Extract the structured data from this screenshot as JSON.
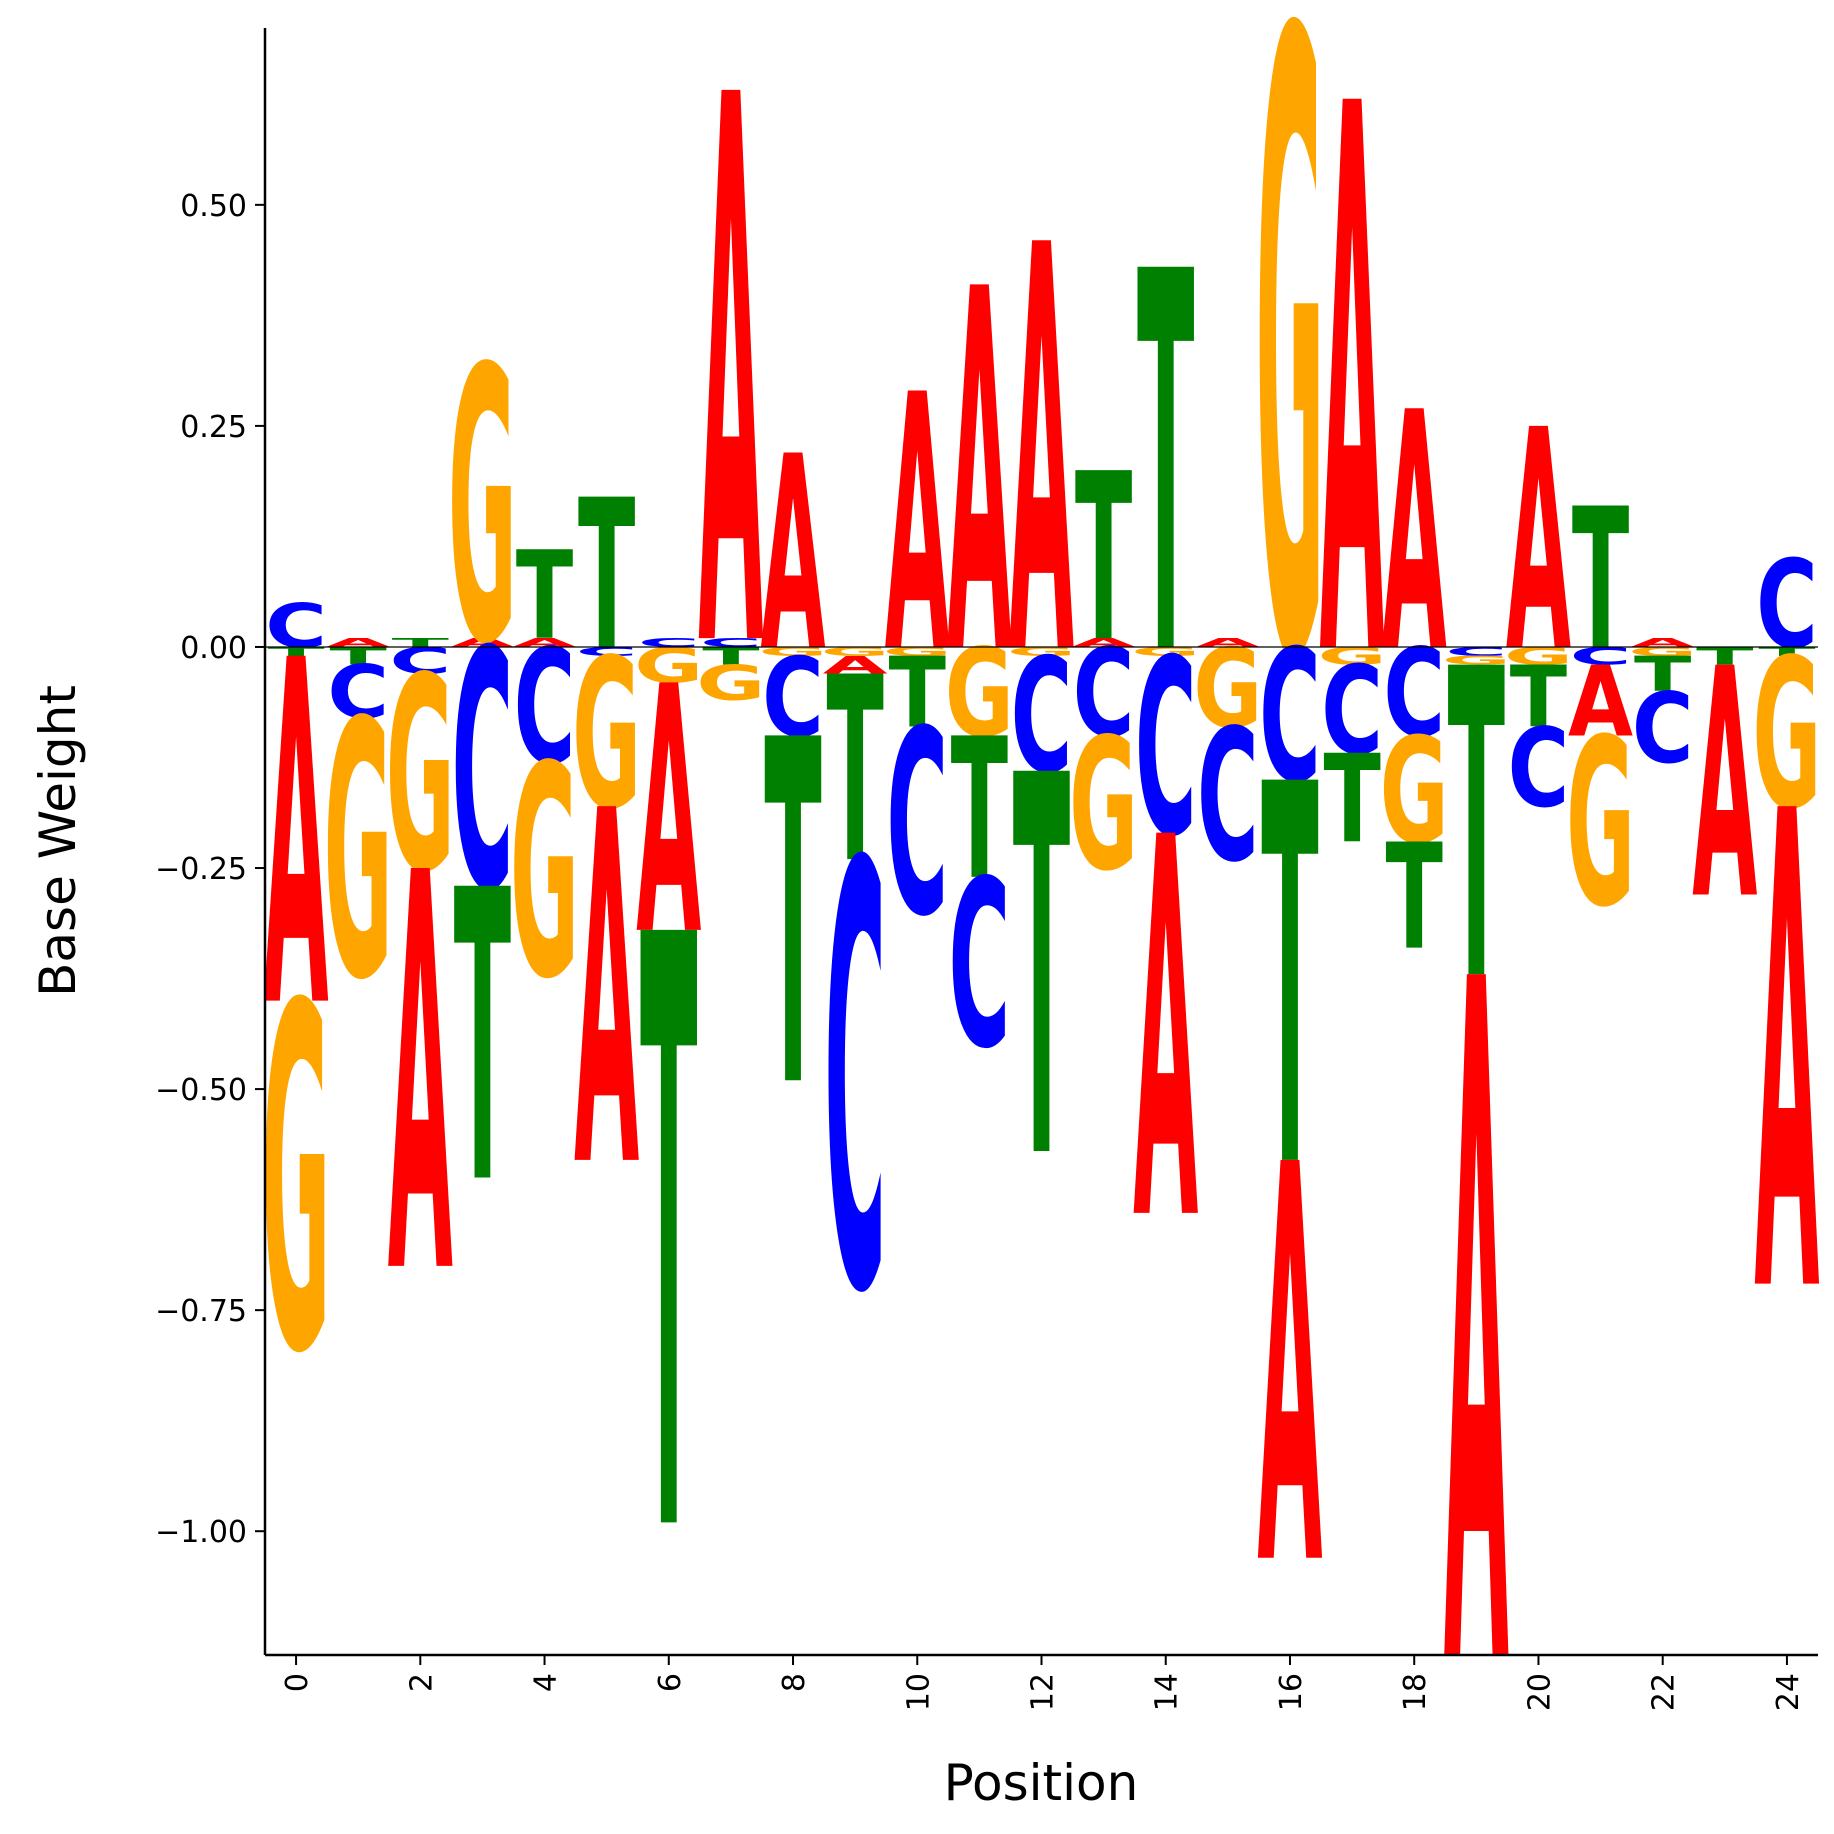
{
  "chart_data": {
    "type": "sequence-logo",
    "xlabel": "Position",
    "ylabel": "Base Weight",
    "xlim": [
      -0.5,
      24.5
    ],
    "ylim": [
      -1.14,
      0.7
    ],
    "x_ticks": [
      0,
      2,
      4,
      6,
      8,
      10,
      12,
      14,
      16,
      18,
      20,
      22,
      24
    ],
    "y_ticks": [
      0.5,
      0.25,
      0.0,
      -0.25,
      -0.5,
      -0.75,
      -1.0
    ],
    "y_tick_labels": [
      "0.50",
      "0.25",
      "0.00",
      "−0.25",
      "−0.50",
      "−0.75",
      "−1.00"
    ],
    "grid": false,
    "colors": {
      "A": "#ff0000",
      "C": "#0000ff",
      "G": "#ffa500",
      "T": "#008000"
    },
    "positions": [
      {
        "pos": 0,
        "A": -0.39,
        "C": 0.05,
        "G": -0.39,
        "T": -0.01
      },
      {
        "pos": 1,
        "A": 0.01,
        "C": -0.06,
        "G": -0.29,
        "T": -0.02
      },
      {
        "pos": 2,
        "A": -0.45,
        "C": -0.03,
        "G": -0.22,
        "T": 0.01
      },
      {
        "pos": 3,
        "A": 0.01,
        "C": -0.27,
        "G": 0.31,
        "T": -0.33
      },
      {
        "pos": 4,
        "A": 0.01,
        "C": -0.13,
        "G": -0.24,
        "T": 0.1
      },
      {
        "pos": 5,
        "A": -0.4,
        "C": -0.01,
        "G": -0.17,
        "T": 0.17
      },
      {
        "pos": 6,
        "A": -0.28,
        "C": 0.01,
        "G": -0.04,
        "T": -0.67
      },
      {
        "pos": 7,
        "A": 0.62,
        "C": 0.01,
        "G": -0.04,
        "T": -0.02
      },
      {
        "pos": 8,
        "A": 0.22,
        "C": -0.09,
        "G": -0.01,
        "T": -0.39
      },
      {
        "pos": 9,
        "A": -0.02,
        "C": -0.48,
        "G": -0.01,
        "T": -0.21
      },
      {
        "pos": 10,
        "A": 0.29,
        "C": -0.21,
        "G": -0.01,
        "T": -0.08
      },
      {
        "pos": 11,
        "A": 0.41,
        "C": -0.19,
        "G": -0.1,
        "T": -0.16
      },
      {
        "pos": 12,
        "A": 0.46,
        "C": -0.13,
        "G": -0.01,
        "T": -0.43
      },
      {
        "pos": 13,
        "A": 0.01,
        "C": -0.1,
        "G": -0.15,
        "T": 0.19
      },
      {
        "pos": 14,
        "A": -0.43,
        "C": -0.2,
        "G": -0.01,
        "T": 0.43
      },
      {
        "pos": 15,
        "A": 0.01,
        "C": -0.15,
        "G": -0.09,
        "T": 0.0
      },
      {
        "pos": 16,
        "A": -0.45,
        "C": -0.15,
        "G": 0.7,
        "T": -0.43
      },
      {
        "pos": 17,
        "A": 0.62,
        "C": -0.1,
        "G": -0.02,
        "T": -0.1
      },
      {
        "pos": 18,
        "A": 0.27,
        "C": -0.1,
        "G": -0.12,
        "T": -0.12
      },
      {
        "pos": 19,
        "A": -0.77,
        "C": -0.01,
        "G": -0.01,
        "T": -0.35
      },
      {
        "pos": 20,
        "A": 0.25,
        "C": -0.09,
        "G": -0.02,
        "T": -0.07
      },
      {
        "pos": 21,
        "A": -0.08,
        "C": -0.02,
        "G": -0.19,
        "T": 0.16
      },
      {
        "pos": 22,
        "A": 0.01,
        "C": -0.08,
        "G": -0.01,
        "T": -0.04
      },
      {
        "pos": 23,
        "A": -0.26,
        "C": 0.0,
        "G": 0.0,
        "T": -0.02
      },
      {
        "pos": 24,
        "A": -0.54,
        "C": 0.1,
        "G": -0.17,
        "T": -0.01
      }
    ]
  }
}
